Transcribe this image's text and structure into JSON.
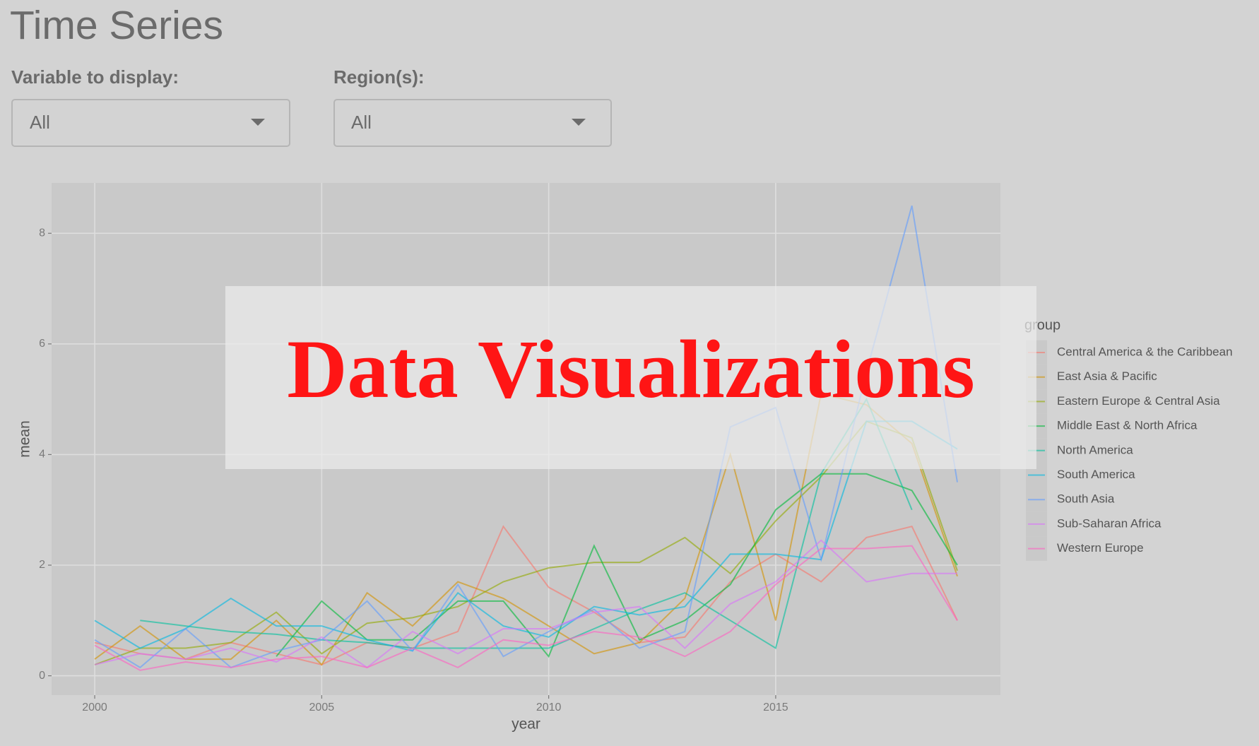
{
  "header": {
    "title": "Time Series"
  },
  "controls": [
    {
      "label": "Variable to display:",
      "value": "All"
    },
    {
      "label": "Region(s):",
      "value": "All"
    }
  ],
  "chart_data": {
    "type": "line",
    "x_label": "year",
    "y_label": "mean",
    "legend_title": "group",
    "x": [
      2000,
      2001,
      2002,
      2003,
      2004,
      2005,
      2006,
      2007,
      2008,
      2009,
      2010,
      2011,
      2012,
      2013,
      2014,
      2015,
      2016,
      2017,
      2018,
      2019
    ],
    "xlim": [
      1999.05,
      2019.95
    ],
    "xticks": [
      2000,
      2005,
      2010,
      2015
    ],
    "ylim": [
      -0.35,
      8.91
    ],
    "yticks": [
      0,
      2,
      4,
      6,
      8
    ],
    "grid": true,
    "legend": "right",
    "series": [
      {
        "name": "Central America & the Caribbean",
        "color": "#F8766D",
        "values": [
          0.6,
          0.4,
          0.3,
          0.6,
          0.4,
          0.2,
          0.6,
          0.5,
          0.8,
          2.7,
          1.6,
          1.15,
          0.6,
          0.7,
          1.7,
          2.2,
          1.7,
          2.5,
          2.7,
          1.0
        ]
      },
      {
        "name": "East Asia & Pacific",
        "color": "#D39200",
        "values": [
          0.3,
          0.9,
          0.3,
          0.3,
          1.0,
          0.2,
          1.5,
          0.9,
          1.7,
          1.4,
          0.9,
          0.4,
          0.6,
          1.4,
          4.0,
          1.0,
          5.1,
          4.9,
          4.2,
          1.8
        ]
      },
      {
        "name": "Eastern Europe & Central Asia",
        "color": "#93AA00",
        "values": [
          0.2,
          0.5,
          0.5,
          0.6,
          1.15,
          0.4,
          0.95,
          1.05,
          1.25,
          1.7,
          1.95,
          2.05,
          2.05,
          2.5,
          1.85,
          2.8,
          3.6,
          4.6,
          4.3,
          1.9
        ]
      },
      {
        "name": "Middle East & North Africa",
        "color": "#00BA38",
        "values": [
          null,
          null,
          null,
          null,
          0.35,
          1.35,
          0.65,
          0.65,
          1.35,
          1.35,
          0.35,
          2.35,
          0.65,
          1.0,
          1.65,
          3.0,
          3.65,
          3.65,
          3.35,
          2.0
        ]
      },
      {
        "name": "North America",
        "color": "#00C19F",
        "values": [
          null,
          1.0,
          0.9,
          0.8,
          0.75,
          0.65,
          0.6,
          0.5,
          0.5,
          0.5,
          0.5,
          0.85,
          1.2,
          1.5,
          1.0,
          0.5,
          3.65,
          5.0,
          3.0,
          null
        ]
      },
      {
        "name": "South America",
        "color": "#00B9E3",
        "values": [
          1.0,
          0.5,
          0.85,
          1.4,
          0.9,
          0.9,
          0.65,
          0.45,
          1.5,
          0.9,
          0.7,
          1.25,
          1.1,
          1.25,
          2.2,
          2.2,
          2.1,
          4.6,
          4.6,
          4.1
        ]
      },
      {
        "name": "South Asia",
        "color": "#619CFF",
        "values": [
          0.65,
          0.15,
          0.85,
          0.15,
          0.45,
          0.65,
          1.35,
          0.45,
          1.65,
          0.35,
          0.8,
          1.2,
          0.5,
          0.8,
          4.5,
          4.85,
          2.1,
          5.5,
          8.5,
          3.5
        ]
      },
      {
        "name": "Sub-Saharan Africa",
        "color": "#DB72FB",
        "values": [
          0.2,
          0.4,
          0.3,
          0.5,
          0.25,
          0.7,
          0.15,
          0.8,
          0.4,
          0.85,
          0.85,
          1.15,
          1.25,
          0.5,
          1.3,
          1.7,
          2.45,
          1.7,
          1.85,
          1.85
        ]
      },
      {
        "name": "Western Europe",
        "color": "#FF61C3",
        "values": [
          0.55,
          0.1,
          0.25,
          0.15,
          0.3,
          0.35,
          0.15,
          0.5,
          0.15,
          0.65,
          0.55,
          0.8,
          0.7,
          0.35,
          0.8,
          1.65,
          2.3,
          2.3,
          2.35,
          1.0
        ]
      }
    ]
  },
  "overlay": {
    "text": "Data Visualizations"
  }
}
